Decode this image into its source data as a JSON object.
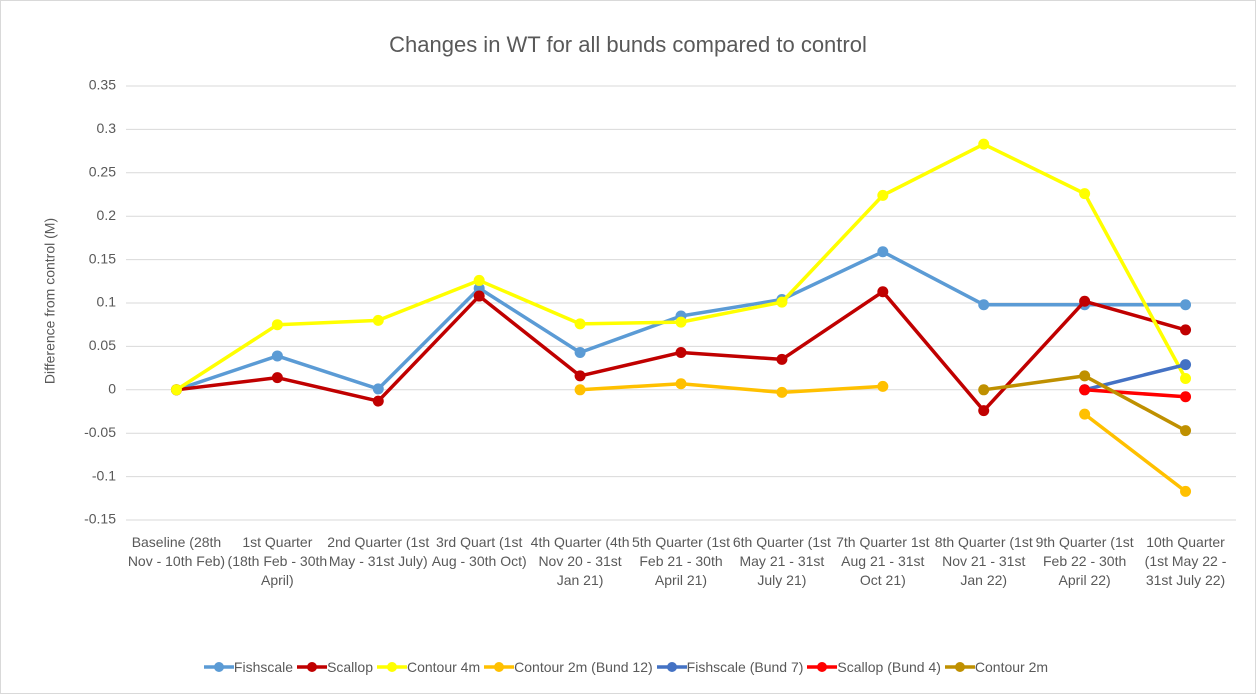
{
  "chart_data": {
    "type": "line",
    "title": "Changes in WT for all bunds compared to control",
    "y_label": "Difference from control (M)",
    "categories": [
      "Baseline (28th Nov - 10th Feb)",
      "1st Quarter (18th Feb - 30th April)",
      "2nd Quarter (1st May - 31st July)",
      "3rd Quart (1st Aug - 30th Oct)",
      "4th Quarter (4th Nov 20 - 31st Jan 21)",
      "5th Quarter (1st Feb 21 - 30th April 21)",
      "6th Quarter (1st May 21 - 31st July 21)",
      "7th Quarter 1st Aug 21 - 31st Oct 21)",
      "8th Quarter (1st Nov 21 - 31st Jan 22)",
      "9th Quarter (1st Feb 22 - 30th April 22)",
      "10th Quarter (1st May 22 - 31st July 22)"
    ],
    "series": [
      {
        "name": "Fishscale",
        "color": "#5b9bd5",
        "values": [
          0,
          0.039,
          0.001,
          0.117,
          0.043,
          0.085,
          0.104,
          0.159,
          0.098,
          0.098,
          0.098
        ]
      },
      {
        "name": "Scallop",
        "color": "#c00000",
        "values": [
          0,
          0.014,
          -0.013,
          0.108,
          0.016,
          0.043,
          0.035,
          0.113,
          -0.024,
          0.102,
          0.069
        ]
      },
      {
        "name": "Contour 4m",
        "color": "#ffff00",
        "values": [
          0,
          0.075,
          0.08,
          0.126,
          0.076,
          0.078,
          0.101,
          0.224,
          0.283,
          0.226,
          0.013
        ]
      },
      {
        "name": "Contour 2m (Bund 12)",
        "color": "#ffc000",
        "values": [
          null,
          null,
          null,
          null,
          0,
          0.007,
          -0.003,
          0.004,
          null,
          -0.028,
          -0.117
        ]
      },
      {
        "name": "Fishscale (Bund 7)",
        "color": "#4472c4",
        "values": [
          null,
          null,
          null,
          null,
          null,
          null,
          null,
          null,
          null,
          0,
          0.029
        ]
      },
      {
        "name": "Scallop (Bund 4)",
        "color": "#ff0000",
        "values": [
          null,
          null,
          null,
          null,
          null,
          null,
          null,
          null,
          null,
          0,
          -0.008
        ]
      },
      {
        "name": "Contour 2m",
        "color": "#bf9000",
        "values": [
          null,
          null,
          null,
          null,
          null,
          null,
          null,
          null,
          0,
          0.016,
          -0.047
        ]
      }
    ],
    "ylim": [
      -0.15,
      0.35
    ],
    "yticks": [
      -0.15,
      -0.1,
      -0.05,
      0,
      0.05,
      0.1,
      0.15,
      0.2,
      0.25,
      0.3,
      0.35
    ],
    "grid": true,
    "legend": "bottom"
  }
}
